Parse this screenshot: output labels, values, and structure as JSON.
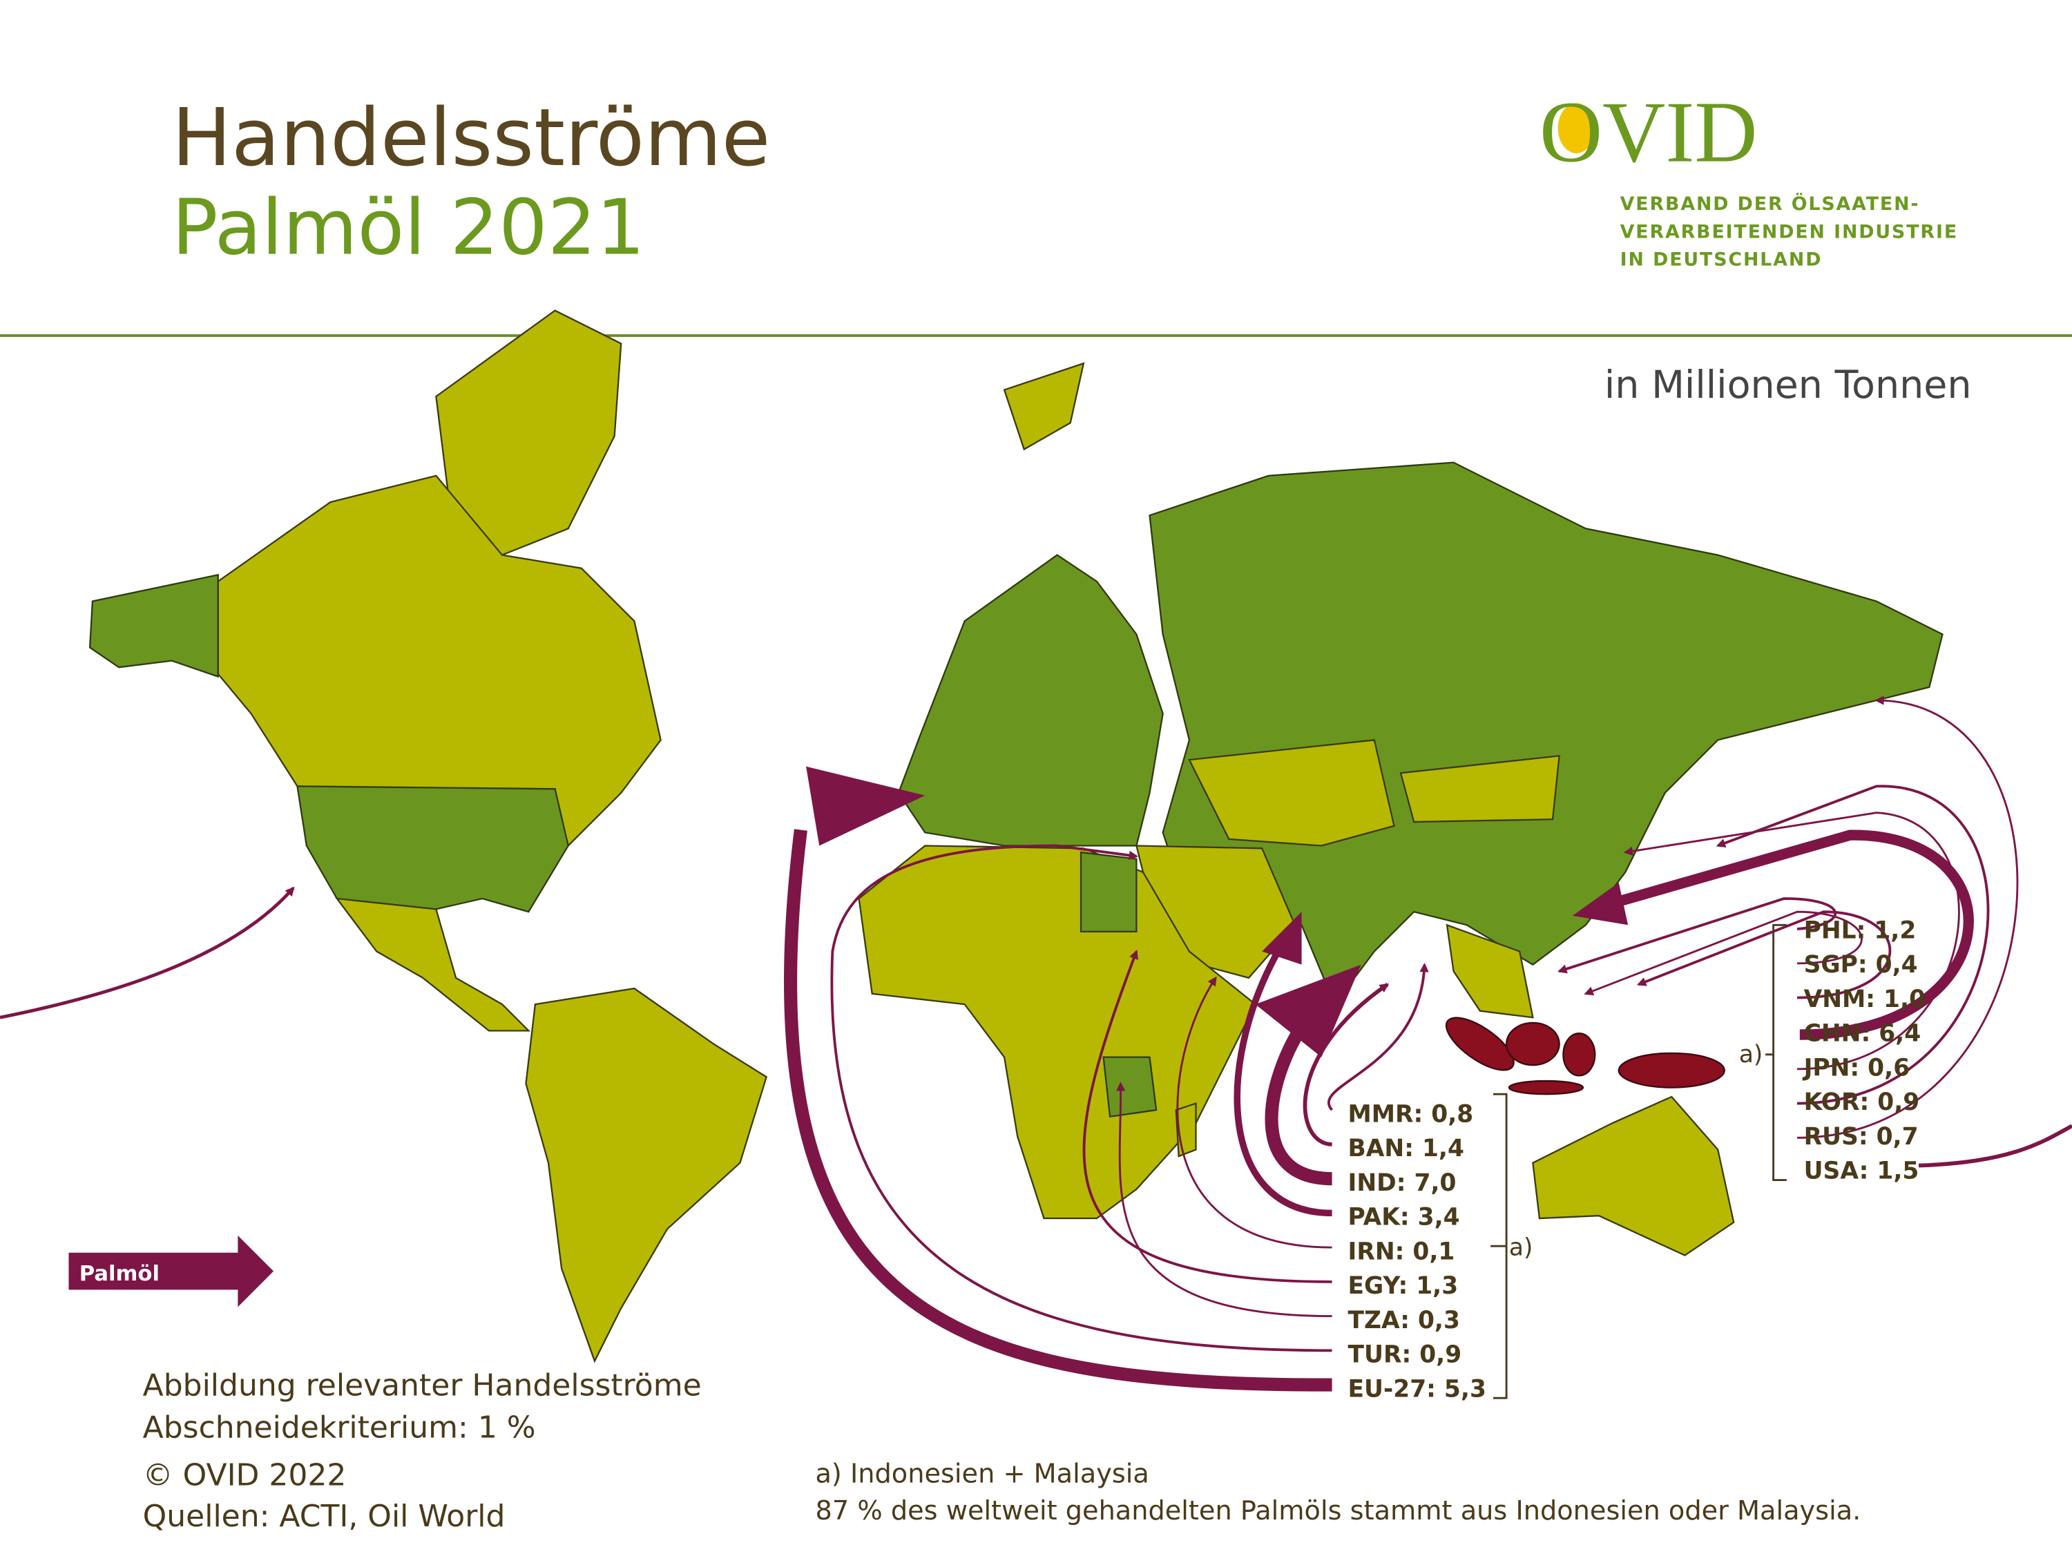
{
  "header": {
    "title_line1": "Handelsströme",
    "title_line2": "Palmöl 2021",
    "logo": "OVID",
    "organisation": [
      "VERBAND DER ÖLSAATEN-",
      "VERARBEITENDEN INDUSTRIE",
      "IN DEUTSCHLAND"
    ]
  },
  "unit": "in Millionen Tonnen",
  "legend": "Palmöl",
  "flows_west": {
    "labels": [
      "MMR: 0,8",
      "BAN: 1,4",
      "IND: 7,0",
      "PAK: 3,4",
      "IRN: 0,1",
      "EGY: 1,3",
      "TZA: 0,3",
      "TUR: 0,9",
      "EU-27: 5,3"
    ],
    "source": "a)"
  },
  "flows_east": {
    "labels": [
      "PHL: 1,2",
      "SGP: 0,4",
      "VNM: 1,0",
      "CHN: 6,4",
      "JPN: 0,6",
      "KOR: 0,9",
      "RUS: 0,7",
      "USA: 1,5"
    ],
    "source": "a)"
  },
  "notes": {
    "left": [
      "Abbildung relevanter Handelsströme",
      "Abschneidekriterium: 1 %",
      "© OVID 2022",
      "Quellen: ACTI, Oil World"
    ],
    "right": [
      "a) Indonesien + Malaysia",
      "87 % des weltweit gehandelten Palmöls stammt aus Indonesien oder Malaysia."
    ]
  }
}
